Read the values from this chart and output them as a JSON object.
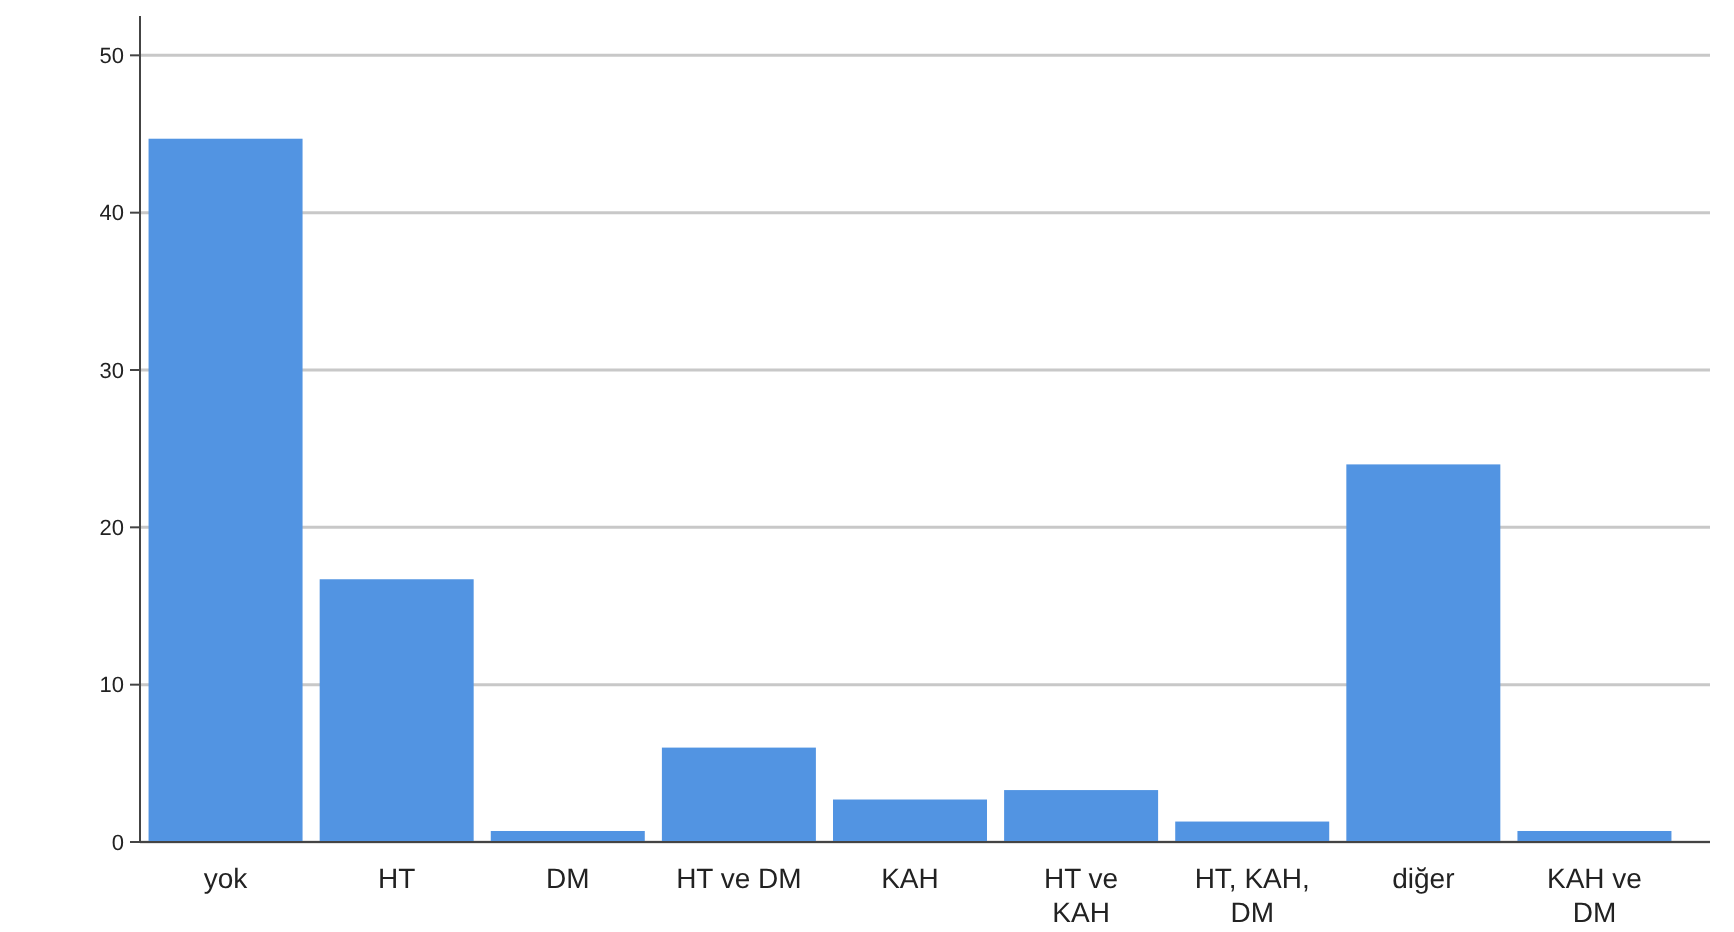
{
  "chart_data": {
    "type": "bar",
    "categories": [
      "yok",
      "HT",
      "DM",
      "HT ve DM",
      "KAH",
      "HT ve KAH",
      "HT, KAH, DM",
      "diğer",
      "KAH ve DM"
    ],
    "values": [
      44.7,
      16.7,
      0.7,
      6.0,
      2.7,
      3.3,
      1.3,
      24.0,
      0.7
    ],
    "color": "#5294e2",
    "ylim": [
      0,
      52.5
    ],
    "yticks": [
      0,
      10,
      20,
      30,
      40,
      50
    ],
    "grid": "y"
  }
}
